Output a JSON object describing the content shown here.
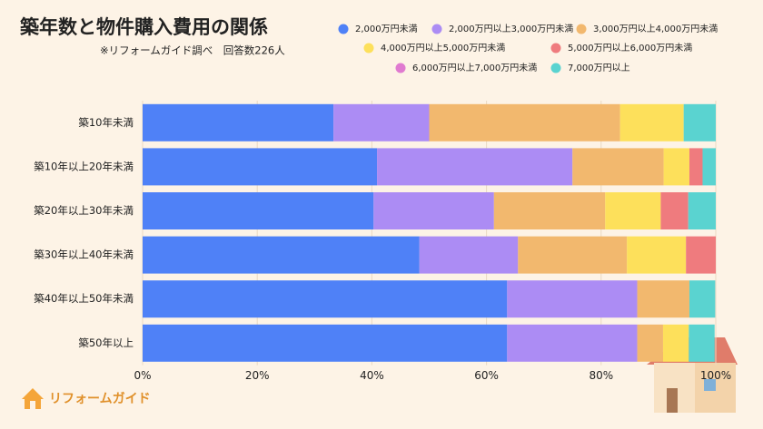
{
  "chart_data": {
    "type": "stacked-bar-horizontal",
    "title": "築年数と物件購入費用の関係",
    "subtitle": "※リフォームガイド調べ　回答数226人",
    "categories": [
      "築10年未満",
      "築10年以上20年未満",
      "築20年以上30年未満",
      "築30年以上40年未満",
      "築40年以上50年未満",
      "築50年以上"
    ],
    "series": [
      {
        "name": "2,000万円未満",
        "color": "#4f81f7",
        "values": [
          33.3,
          40.9,
          40.3,
          48.3,
          63.6,
          63.6
        ]
      },
      {
        "name": "2,000万円以上3,000万円未満",
        "color": "#ac8cf4",
        "values": [
          16.7,
          34.1,
          21.0,
          17.2,
          22.7,
          22.7
        ]
      },
      {
        "name": "3,000万円以上4,000万円未満",
        "color": "#f2b86e",
        "values": [
          33.3,
          15.9,
          19.4,
          19.0,
          9.1,
          4.5
        ]
      },
      {
        "name": "4,000万円以上5,000万円未満",
        "color": "#fde05b",
        "values": [
          11.1,
          4.5,
          9.7,
          10.3,
          null,
          4.5
        ]
      },
      {
        "name": "5,000万円以上6,000万円未満",
        "color": "#ef7b7e",
        "values": [
          null,
          2.3,
          4.8,
          5.2,
          null,
          null
        ]
      },
      {
        "name": "6,000万円以上7,000万円未満",
        "color": "#e07ad0",
        "values": [
          null,
          null,
          null,
          null,
          null,
          null
        ]
      },
      {
        "name": "7,000万円以上",
        "color": "#5ad3d0",
        "values": [
          5.6,
          2.3,
          4.8,
          null,
          4.5,
          4.5
        ]
      }
    ],
    "xlim": [
      0,
      100
    ],
    "xticks": [
      {
        "value": 0,
        "label": "0%"
      },
      {
        "value": 20,
        "label": "20%"
      },
      {
        "value": 40,
        "label": "40%"
      },
      {
        "value": 60,
        "label": "60%"
      },
      {
        "value": 80,
        "label": "80%"
      },
      {
        "value": 100,
        "label": "100%"
      }
    ],
    "grid": true
  },
  "logo": "リフォームガイド"
}
